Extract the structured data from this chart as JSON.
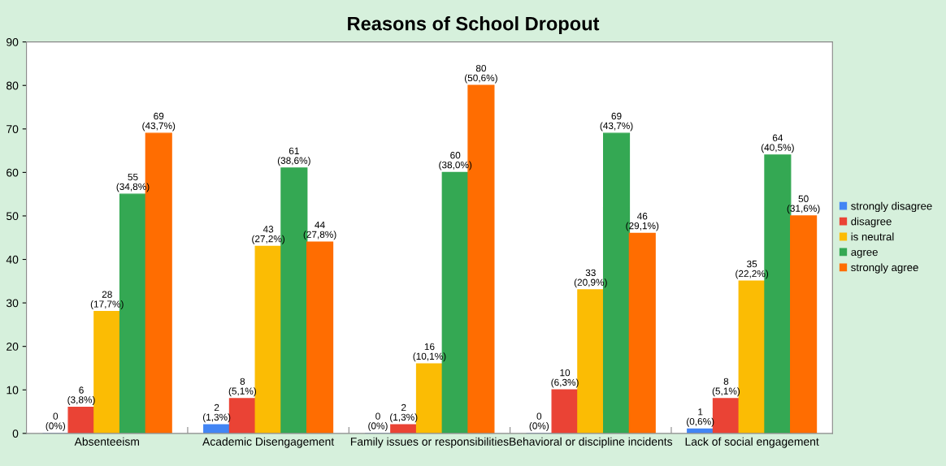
{
  "chart_data": {
    "type": "bar",
    "title": "Reasons of School Dropout",
    "categories": [
      "Absenteeism",
      "Academic Disengagement",
      "Family issues or responsibilities",
      "Behavioral or discipline incidents",
      "Lack of social engagement"
    ],
    "series": [
      {
        "name": "strongly disagree",
        "color": "#4285f4",
        "values": [
          0,
          2,
          0,
          0,
          1
        ],
        "value_labels": [
          "0\n(0%)",
          "2\n(1,3%)",
          "0\n(0%)",
          "0\n(0%)",
          "1\n(0,6%)"
        ]
      },
      {
        "name": "disagree",
        "color": "#ea4335",
        "values": [
          6,
          8,
          2,
          10,
          8
        ],
        "value_labels": [
          "6\n(3,8%)",
          "8\n(5,1%)",
          "2\n(1,3%)",
          "10\n(6,3%)",
          "8\n(5,1%)"
        ]
      },
      {
        "name": "is neutral",
        "color": "#fbbc04",
        "values": [
          28,
          43,
          16,
          33,
          35
        ],
        "value_labels": [
          "28\n(17,7%)",
          "43\n(27,2%)",
          "16\n(10,1%)",
          "33\n(20,9%)",
          "35\n(22,2%)"
        ]
      },
      {
        "name": "agree",
        "color": "#34a853",
        "values": [
          55,
          61,
          60,
          69,
          64
        ],
        "value_labels": [
          "55\n(34,8%)",
          "61\n(38,6%)",
          "60\n(38,0%)",
          "69\n(43,7%)",
          "64\n(40,5%)"
        ]
      },
      {
        "name": "strongly agree",
        "color": "#ff6d01",
        "values": [
          69,
          44,
          80,
          46,
          50
        ],
        "value_labels": [
          "69\n(43,7%)",
          "44\n(27,8%)",
          "80\n(50,6%)",
          "46\n(29,1%)",
          "50\n(31,6%)"
        ]
      }
    ],
    "ylim": [
      0,
      90
    ],
    "yticks": [
      0,
      10,
      20,
      30,
      40,
      50,
      60,
      70,
      80,
      90
    ],
    "grid": false,
    "legend": "right"
  }
}
